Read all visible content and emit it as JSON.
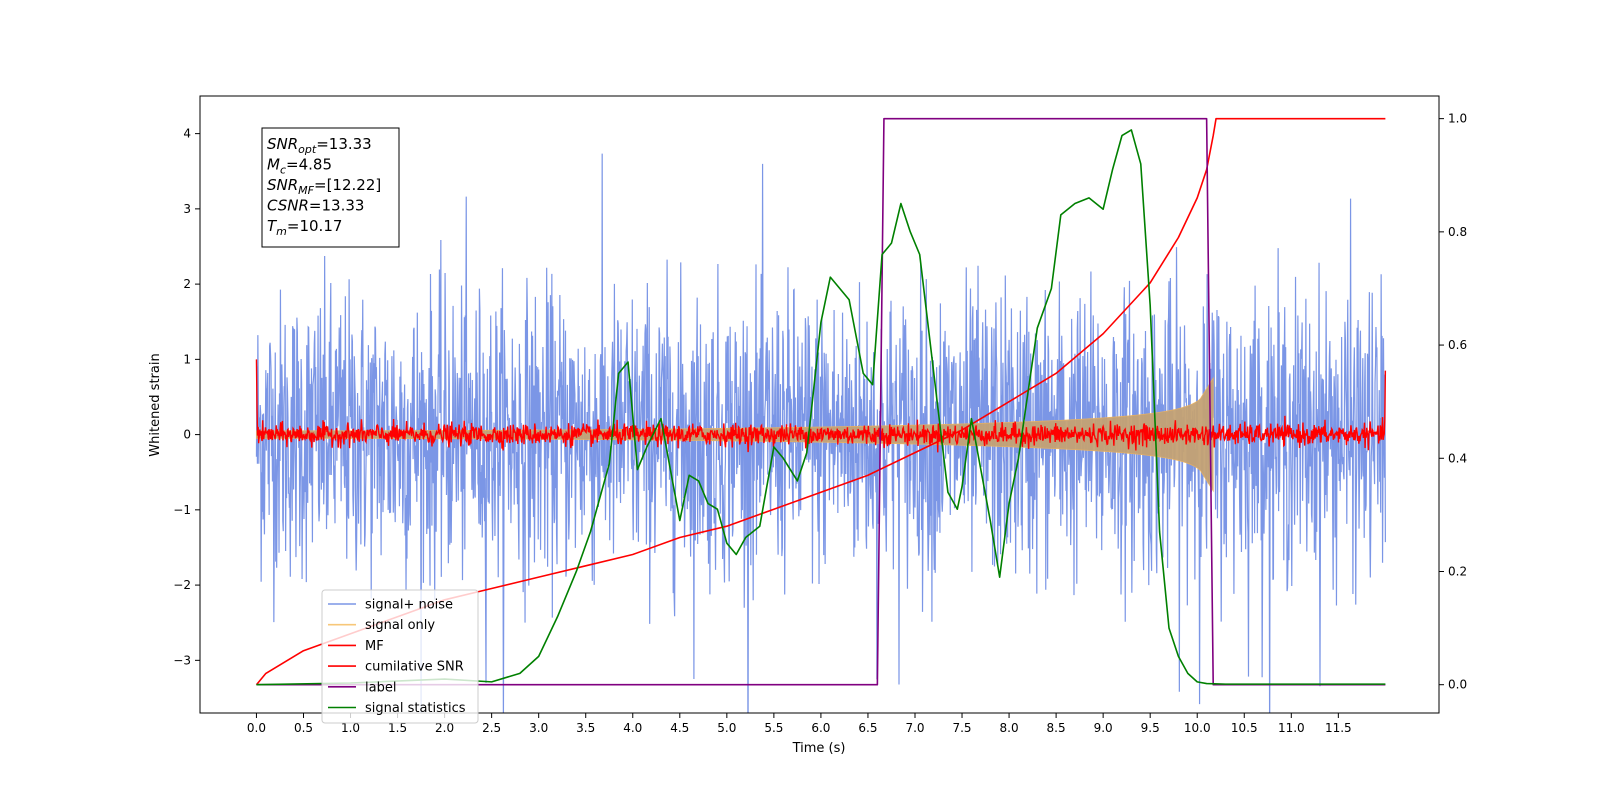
{
  "chart_data": {
    "type": "line",
    "xlabel": "Time (s)",
    "ylabel_left": "Whitened strain",
    "ylabel_right": "",
    "xlim": [
      -0.6,
      12.57
    ],
    "ylim_left": [
      -3.7,
      4.5
    ],
    "ylim_right": [
      -0.05,
      1.04
    ],
    "x_ticks": [
      "0.0",
      "0.5",
      "1.0",
      "1.5",
      "2.0",
      "2.5",
      "3.0",
      "3.5",
      "4.0",
      "4.5",
      "5.0",
      "5.5",
      "6.0",
      "6.5",
      "7.0",
      "7.5",
      "8.0",
      "8.5",
      "9.0",
      "9.5",
      "10.0",
      "10.5",
      "11.0",
      "11.5"
    ],
    "y_left_ticks": [
      "−3",
      "−2",
      "−1",
      "0",
      "1",
      "2",
      "3",
      "4"
    ],
    "y_right_ticks": [
      "0.0",
      "0.2",
      "0.4",
      "0.6",
      "0.8",
      "1.0"
    ],
    "annotation": {
      "lines": [
        {
          "sym": "SNR",
          "sub": "opt",
          "value": "=13.33"
        },
        {
          "sym": "M",
          "sub": "c",
          "value": "=4.85"
        },
        {
          "sym": "SNR",
          "sub": "MF",
          "value": "=[12.22]"
        },
        {
          "sym": "CSNR",
          "sub": "",
          "value": "=13.33"
        },
        {
          "sym": "T",
          "sub": "m",
          "value": "=10.17"
        }
      ]
    },
    "series": [
      {
        "name": "signal+ noise",
        "color": "#7b96e6",
        "axis": "left",
        "kind": "noise",
        "amplitude": 2.4,
        "duration": 12.0
      },
      {
        "name": "signal only",
        "color": "#f5b041",
        "axis": "left",
        "kind": "chirp",
        "t_end": 10.17,
        "peak_amplitude": 0.75
      },
      {
        "name": "MF",
        "color": "#ff0000",
        "axis": "left",
        "kind": "noise",
        "amplitude": 0.25,
        "start_value": 1.0
      },
      {
        "name": "cumilative SNR",
        "color": "#ff0000",
        "axis": "right",
        "x": [
          0.0,
          0.1,
          0.5,
          1.0,
          1.5,
          2.0,
          2.5,
          3.0,
          3.5,
          4.0,
          4.5,
          5.0,
          5.5,
          6.0,
          6.5,
          7.0,
          7.5,
          8.0,
          8.5,
          9.0,
          9.5,
          9.8,
          10.0,
          10.1,
          10.17,
          10.2,
          12.0
        ],
        "values": [
          0.0,
          0.02,
          0.06,
          0.09,
          0.12,
          0.15,
          0.17,
          0.19,
          0.21,
          0.23,
          0.26,
          0.28,
          0.31,
          0.34,
          0.37,
          0.41,
          0.45,
          0.5,
          0.55,
          0.62,
          0.71,
          0.79,
          0.86,
          0.91,
          0.97,
          1.0,
          1.0
        ]
      },
      {
        "name": "label",
        "color": "#800080",
        "axis": "right",
        "x": [
          0.0,
          6.6,
          6.67,
          10.1,
          10.17,
          12.0
        ],
        "values": [
          0.0,
          0.0,
          1.0,
          1.0,
          0.0,
          0.0
        ]
      },
      {
        "name": "signal statistics",
        "color": "#008000",
        "axis": "right",
        "x": [
          0.0,
          1.0,
          2.0,
          2.5,
          2.8,
          3.0,
          3.2,
          3.4,
          3.55,
          3.65,
          3.75,
          3.85,
          3.95,
          4.05,
          4.15,
          4.3,
          4.4,
          4.5,
          4.6,
          4.7,
          4.8,
          4.9,
          5.0,
          5.1,
          5.2,
          5.35,
          5.5,
          5.6,
          5.75,
          5.85,
          6.0,
          6.1,
          6.3,
          6.45,
          6.55,
          6.65,
          6.75,
          6.85,
          6.95,
          7.05,
          7.2,
          7.35,
          7.45,
          7.5,
          7.6,
          7.7,
          7.8,
          7.9,
          8.0,
          8.1,
          8.3,
          8.45,
          8.55,
          8.7,
          8.85,
          9.0,
          9.1,
          9.2,
          9.3,
          9.4,
          9.5,
          9.6,
          9.7,
          9.8,
          9.9,
          10.0,
          10.1,
          10.3,
          12.0
        ],
        "values": [
          0.0,
          0.003,
          0.01,
          0.005,
          0.02,
          0.05,
          0.12,
          0.2,
          0.27,
          0.33,
          0.39,
          0.55,
          0.57,
          0.38,
          0.42,
          0.47,
          0.38,
          0.29,
          0.37,
          0.36,
          0.32,
          0.31,
          0.25,
          0.23,
          0.26,
          0.28,
          0.42,
          0.4,
          0.36,
          0.41,
          0.64,
          0.72,
          0.68,
          0.55,
          0.53,
          0.76,
          0.78,
          0.85,
          0.8,
          0.76,
          0.55,
          0.34,
          0.31,
          0.35,
          0.47,
          0.38,
          0.29,
          0.19,
          0.32,
          0.4,
          0.63,
          0.7,
          0.83,
          0.85,
          0.86,
          0.84,
          0.91,
          0.97,
          0.98,
          0.92,
          0.67,
          0.27,
          0.1,
          0.05,
          0.02,
          0.005,
          0.002,
          0.001,
          0.001
        ]
      }
    ],
    "legend": {
      "position": "lower-left"
    }
  }
}
